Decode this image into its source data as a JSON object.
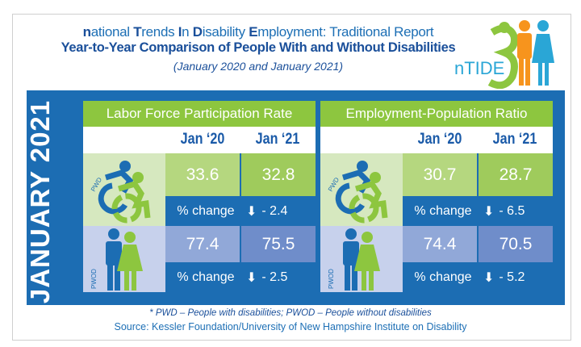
{
  "header": {
    "title_parts": [
      {
        "cap": "n",
        "rest": "ational "
      },
      {
        "cap": "T",
        "rest": "rends "
      },
      {
        "cap": "I",
        "rest": "n "
      },
      {
        "cap": "D",
        "rest": "isability "
      },
      {
        "cap": "E",
        "rest": "mployment: Traditional Report"
      }
    ],
    "subtitle": "Year-to-Year Comparison of People With and Without Disabilities",
    "date_range": "(January 2020  and  January 2021)",
    "logo_text": "nTIDE"
  },
  "side_label": "JANUARY 2021",
  "columns": [
    "Jan ‘20",
    "Jan ‘21"
  ],
  "change_label": "% change",
  "group_labels": {
    "pwd": "PWD",
    "pwod": "PWOD"
  },
  "panels": [
    {
      "title": "Labor Force Participation Rate",
      "pwd": {
        "jan20": "33.6",
        "jan21": "32.8",
        "change": "- 2.4"
      },
      "pwod": {
        "jan20": "77.4",
        "jan21": "75.5",
        "change": "- 2.5"
      }
    },
    {
      "title": "Employment-Population Ratio",
      "pwd": {
        "jan20": "30.7",
        "jan21": "28.7",
        "change": "- 6.5"
      },
      "pwod": {
        "jan20": "74.4",
        "jan21": "70.5",
        "change": "- 5.2"
      }
    }
  ],
  "footnote": "* PWD – People with disabilities;  PWOD – People without disabilities",
  "source": "Source: Kessler Foundation/University of New Hampshire Institute on Disability",
  "colors": {
    "blue": "#1c6db3",
    "green": "#8dc63f",
    "light_green": "#d6e8bf",
    "light_blue": "#c7d1ec",
    "orange": "#f7941d"
  }
}
